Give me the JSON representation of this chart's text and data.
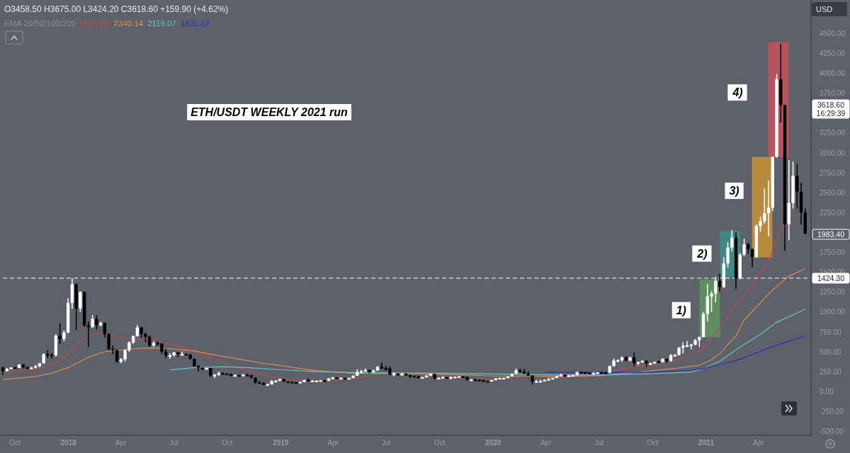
{
  "chart_data": {
    "type": "candlestick",
    "title": "ETH/USDT WEEKLY 2021 run",
    "x": [
      "2017-09-11",
      "2017-09-18",
      "2017-09-25",
      "2017-10-02",
      "2017-10-09",
      "2017-10-16",
      "2017-10-23",
      "2017-10-30",
      "2017-11-06",
      "2017-11-13",
      "2017-11-20",
      "2017-11-27",
      "2017-12-04",
      "2017-12-11",
      "2017-12-18",
      "2017-12-25",
      "2018-01-01",
      "2018-01-08",
      "2018-01-15",
      "2018-01-22",
      "2018-01-29",
      "2018-02-05",
      "2018-02-12",
      "2018-02-19",
      "2018-02-26",
      "2018-03-05",
      "2018-03-12",
      "2018-03-19",
      "2018-03-26",
      "2018-04-02",
      "2018-04-09",
      "2018-04-16",
      "2018-04-23",
      "2018-04-30",
      "2018-05-07",
      "2018-05-14",
      "2018-05-21",
      "2018-05-28",
      "2018-06-04",
      "2018-06-11",
      "2018-06-18",
      "2018-06-25",
      "2018-07-02",
      "2018-07-09",
      "2018-07-16",
      "2018-07-23",
      "2018-07-30",
      "2018-08-06",
      "2018-08-13",
      "2018-08-20",
      "2018-08-27",
      "2018-09-03",
      "2018-09-10",
      "2018-09-17",
      "2018-09-24",
      "2018-10-01",
      "2018-10-08",
      "2018-10-15",
      "2018-10-22",
      "2018-10-29",
      "2018-11-05",
      "2018-11-12",
      "2018-11-19",
      "2018-11-26",
      "2018-12-03",
      "2018-12-10",
      "2018-12-17",
      "2018-12-24",
      "2018-12-31",
      "2019-01-07",
      "2019-01-14",
      "2019-01-21",
      "2019-01-28",
      "2019-02-04",
      "2019-02-11",
      "2019-02-18",
      "2019-02-25",
      "2019-03-04",
      "2019-03-11",
      "2019-03-18",
      "2019-03-25",
      "2019-04-01",
      "2019-04-08",
      "2019-04-15",
      "2019-04-22",
      "2019-04-29",
      "2019-05-06",
      "2019-05-13",
      "2019-05-20",
      "2019-05-27",
      "2019-06-03",
      "2019-06-10",
      "2019-06-17",
      "2019-06-24",
      "2019-07-01",
      "2019-07-08",
      "2019-07-15",
      "2019-07-22",
      "2019-07-29",
      "2019-08-05",
      "2019-08-12",
      "2019-08-19",
      "2019-08-26",
      "2019-09-02",
      "2019-09-09",
      "2019-09-16",
      "2019-09-23",
      "2019-09-30",
      "2019-10-07",
      "2019-10-14",
      "2019-10-21",
      "2019-10-28",
      "2019-11-04",
      "2019-11-11",
      "2019-11-18",
      "2019-11-25",
      "2019-12-02",
      "2019-12-09",
      "2019-12-16",
      "2019-12-23",
      "2019-12-30",
      "2020-01-06",
      "2020-01-13",
      "2020-01-20",
      "2020-01-27",
      "2020-02-03",
      "2020-02-10",
      "2020-02-17",
      "2020-02-24",
      "2020-03-02",
      "2020-03-09",
      "2020-03-16",
      "2020-03-23",
      "2020-03-30",
      "2020-04-06",
      "2020-04-13",
      "2020-04-20",
      "2020-04-27",
      "2020-05-04",
      "2020-05-11",
      "2020-05-18",
      "2020-05-25",
      "2020-06-01",
      "2020-06-08",
      "2020-06-15",
      "2020-06-22",
      "2020-06-29",
      "2020-07-06",
      "2020-07-13",
      "2020-07-20",
      "2020-07-27",
      "2020-08-03",
      "2020-08-10",
      "2020-08-17",
      "2020-08-24",
      "2020-08-31",
      "2020-09-07",
      "2020-09-14",
      "2020-09-21",
      "2020-09-28",
      "2020-10-05",
      "2020-10-12",
      "2020-10-19",
      "2020-10-26",
      "2020-11-02",
      "2020-11-09",
      "2020-11-16",
      "2020-11-23",
      "2020-11-30",
      "2020-12-07",
      "2020-12-14",
      "2020-12-21",
      "2020-12-28",
      "2021-01-04",
      "2021-01-11",
      "2021-01-18",
      "2021-01-25",
      "2021-02-01",
      "2021-02-08",
      "2021-02-15",
      "2021-02-22",
      "2021-03-01",
      "2021-03-08",
      "2021-03-15",
      "2021-03-22",
      "2021-03-29",
      "2021-04-05",
      "2021-04-12",
      "2021-04-19",
      "2021-04-26",
      "2021-05-03",
      "2021-05-10",
      "2021-05-17",
      "2021-05-24",
      "2021-05-31",
      "2021-06-07",
      "2021-06-14",
      "2021-06-21"
    ],
    "ohlc": [
      [
        300,
        312,
        210,
        258
      ],
      [
        258,
        295,
        250,
        283
      ],
      [
        283,
        305,
        278,
        302
      ],
      [
        302,
        312,
        290,
        297
      ],
      [
        297,
        345,
        295,
        338
      ],
      [
        338,
        345,
        290,
        305
      ],
      [
        305,
        310,
        280,
        297
      ],
      [
        297,
        310,
        285,
        300
      ],
      [
        300,
        335,
        290,
        318
      ],
      [
        318,
        360,
        305,
        355
      ],
      [
        355,
        480,
        350,
        470
      ],
      [
        470,
        520,
        420,
        465
      ],
      [
        465,
        480,
        410,
        455
      ],
      [
        455,
        720,
        440,
        700
      ],
      [
        700,
        860,
        600,
        660
      ],
      [
        660,
        770,
        630,
        742
      ],
      [
        742,
        1170,
        730,
        1115
      ],
      [
        1115,
        1424.3,
        1040,
        1348
      ],
      [
        1348,
        1360,
        770,
        1045
      ],
      [
        1045,
        1260,
        1000,
        1250
      ],
      [
        1250,
        1255,
        810,
        833
      ],
      [
        833,
        880,
        560,
        810
      ],
      [
        810,
        960,
        800,
        913
      ],
      [
        913,
        960,
        780,
        833
      ],
      [
        833,
        880,
        820,
        860
      ],
      [
        860,
        870,
        680,
        724
      ],
      [
        724,
        730,
        520,
        537
      ],
      [
        537,
        580,
        470,
        520
      ],
      [
        520,
        530,
        365,
        375
      ],
      [
        375,
        420,
        355,
        405
      ],
      [
        405,
        530,
        380,
        520
      ],
      [
        520,
        630,
        500,
        618
      ],
      [
        618,
        700,
        600,
        698
      ],
      [
        698,
        835,
        690,
        805
      ],
      [
        805,
        810,
        670,
        724
      ],
      [
        724,
        740,
        620,
        690
      ],
      [
        690,
        700,
        560,
        580
      ],
      [
        580,
        630,
        560,
        610
      ],
      [
        610,
        630,
        580,
        600
      ],
      [
        600,
        610,
        470,
        500
      ],
      [
        500,
        540,
        420,
        455
      ],
      [
        455,
        480,
        410,
        455
      ],
      [
        455,
        500,
        440,
        490
      ],
      [
        490,
        500,
        430,
        470
      ],
      [
        470,
        505,
        455,
        470
      ],
      [
        470,
        480,
        455,
        465
      ],
      [
        465,
        470,
        400,
        410
      ],
      [
        410,
        415,
        310,
        320
      ],
      [
        320,
        330,
        250,
        300
      ],
      [
        300,
        305,
        265,
        280
      ],
      [
        280,
        300,
        270,
        295
      ],
      [
        295,
        300,
        185,
        200
      ],
      [
        200,
        220,
        170,
        210
      ],
      [
        210,
        250,
        200,
        230
      ],
      [
        230,
        240,
        215,
        225
      ],
      [
        225,
        230,
        210,
        215
      ],
      [
        215,
        230,
        190,
        200
      ],
      [
        200,
        215,
        195,
        205
      ],
      [
        205,
        210,
        195,
        200
      ],
      [
        200,
        225,
        195,
        210
      ],
      [
        210,
        225,
        200,
        205
      ],
      [
        205,
        210,
        165,
        175
      ],
      [
        175,
        180,
        100,
        115
      ],
      [
        115,
        130,
        100,
        110
      ],
      [
        110,
        115,
        82,
        85
      ],
      [
        85,
        100,
        78,
        90
      ],
      [
        90,
        145,
        88,
        130
      ],
      [
        130,
        145,
        115,
        135
      ],
      [
        135,
        160,
        130,
        155
      ],
      [
        155,
        160,
        120,
        125
      ],
      [
        125,
        130,
        110,
        120
      ],
      [
        120,
        125,
        110,
        115
      ],
      [
        115,
        118,
        100,
        110
      ],
      [
        110,
        125,
        105,
        120
      ],
      [
        120,
        150,
        118,
        145
      ],
      [
        145,
        165,
        130,
        135
      ],
      [
        135,
        145,
        125,
        135
      ],
      [
        135,
        140,
        125,
        135
      ],
      [
        135,
        145,
        130,
        140
      ],
      [
        140,
        145,
        130,
        135
      ],
      [
        135,
        170,
        130,
        165
      ],
      [
        165,
        185,
        160,
        175
      ],
      [
        175,
        180,
        160,
        165
      ],
      [
        165,
        180,
        160,
        170
      ],
      [
        170,
        175,
        145,
        155
      ],
      [
        155,
        175,
        150,
        170
      ],
      [
        170,
        200,
        165,
        200
      ],
      [
        200,
        280,
        195,
        245
      ],
      [
        245,
        270,
        225,
        255
      ],
      [
        255,
        290,
        250,
        270
      ],
      [
        270,
        275,
        225,
        245
      ],
      [
        245,
        275,
        240,
        265
      ],
      [
        265,
        320,
        260,
        310
      ],
      [
        310,
        365,
        280,
        295
      ],
      [
        295,
        320,
        260,
        290
      ],
      [
        290,
        315,
        205,
        215
      ],
      [
        215,
        240,
        190,
        225
      ],
      [
        225,
        230,
        200,
        215
      ],
      [
        215,
        235,
        205,
        220
      ],
      [
        220,
        235,
        200,
        205
      ],
      [
        205,
        210,
        170,
        195
      ],
      [
        195,
        200,
        180,
        190
      ],
      [
        190,
        195,
        165,
        170
      ],
      [
        170,
        185,
        165,
        180
      ],
      [
        180,
        205,
        175,
        200
      ],
      [
        200,
        225,
        195,
        220
      ],
      [
        220,
        225,
        150,
        165
      ],
      [
        165,
        180,
        160,
        170
      ],
      [
        170,
        195,
        165,
        180
      ],
      [
        180,
        185,
        160,
        170
      ],
      [
        170,
        195,
        155,
        180
      ],
      [
        180,
        190,
        175,
        185
      ],
      [
        185,
        195,
        180,
        190
      ],
      [
        190,
        195,
        180,
        185
      ],
      [
        185,
        190,
        140,
        150
      ],
      [
        150,
        158,
        140,
        150
      ],
      [
        150,
        160,
        136,
        145
      ],
      [
        145,
        155,
        132,
        142
      ],
      [
        142,
        150,
        118,
        130
      ],
      [
        130,
        135,
        125,
        128
      ],
      [
        128,
        145,
        125,
        143
      ],
      [
        143,
        170,
        140,
        165
      ],
      [
        165,
        175,
        160,
        170
      ],
      [
        170,
        175,
        155,
        170
      ],
      [
        170,
        190,
        165,
        190
      ],
      [
        190,
        225,
        185,
        225
      ],
      [
        225,
        290,
        220,
        265
      ],
      [
        265,
        285,
        240,
        250
      ],
      [
        250,
        280,
        220,
        225
      ],
      [
        225,
        255,
        195,
        200
      ],
      [
        200,
        205,
        90,
        125
      ],
      [
        125,
        145,
        110,
        130
      ],
      [
        130,
        145,
        125,
        130
      ],
      [
        130,
        150,
        125,
        145
      ],
      [
        145,
        175,
        140,
        155
      ],
      [
        155,
        175,
        150,
        170
      ],
      [
        170,
        200,
        165,
        195
      ],
      [
        195,
        225,
        190,
        210
      ],
      [
        210,
        215,
        180,
        190
      ],
      [
        190,
        210,
        185,
        200
      ],
      [
        200,
        210,
        195,
        205
      ],
      [
        205,
        250,
        200,
        245
      ],
      [
        245,
        250,
        230,
        240
      ],
      [
        240,
        250,
        225,
        235
      ],
      [
        235,
        240,
        225,
        230
      ],
      [
        230,
        245,
        220,
        230
      ],
      [
        230,
        245,
        225,
        240
      ],
      [
        240,
        252,
        226,
        236
      ],
      [
        236,
        248,
        224,
        235
      ],
      [
        235,
        325,
        230,
        320
      ],
      [
        320,
        415,
        315,
        390
      ],
      [
        390,
        405,
        365,
        395
      ],
      [
        395,
        440,
        375,
        430
      ],
      [
        430,
        445,
        380,
        390
      ],
      [
        390,
        435,
        380,
        430
      ],
      [
        430,
        490,
        310,
        355
      ],
      [
        355,
        375,
        330,
        370
      ],
      [
        370,
        395,
        360,
        385
      ],
      [
        385,
        390,
        310,
        355
      ],
      [
        355,
        365,
        330,
        355
      ],
      [
        355,
        375,
        345,
        375
      ],
      [
        375,
        390,
        365,
        370
      ],
      [
        370,
        420,
        365,
        410
      ],
      [
        410,
        415,
        355,
        385
      ],
      [
        385,
        470,
        375,
        455
      ],
      [
        455,
        470,
        440,
        460
      ],
      [
        460,
        560,
        455,
        550
      ],
      [
        550,
        620,
        480,
        575
      ],
      [
        575,
        635,
        560,
        580
      ],
      [
        580,
        600,
        530,
        590
      ],
      [
        590,
        660,
        580,
        645
      ],
      [
        645,
        690,
        560,
        685
      ],
      [
        685,
        1000,
        680,
        975
      ],
      [
        975,
        1350,
        880,
        1195
      ],
      [
        1195,
        1260,
        1000,
        1230
      ],
      [
        1230,
        1440,
        1120,
        1390
      ],
      [
        1390,
        1480,
        1250,
        1315
      ],
      [
        1315,
        1690,
        1300,
        1610
      ],
      [
        1610,
        1880,
        1560,
        1810
      ],
      [
        1810,
        2030,
        1760,
        1935
      ],
      [
        1935,
        2000,
        1290,
        1420
      ],
      [
        1420,
        1740,
        1410,
        1720
      ],
      [
        1720,
        1920,
        1700,
        1850
      ],
      [
        1850,
        1870,
        1730,
        1790
      ],
      [
        1790,
        1800,
        1560,
        1690
      ],
      [
        1690,
        2100,
        1680,
        2080
      ],
      [
        2080,
        2200,
        2010,
        2140
      ],
      [
        2140,
        2550,
        2110,
        2240
      ],
      [
        2240,
        2650,
        1950,
        2310
      ],
      [
        2310,
        2950,
        2270,
        2950
      ],
      [
        2950,
        3990,
        2940,
        3925
      ],
      [
        3925,
        4372,
        3380,
        3600
      ],
      [
        3600,
        3600,
        1770,
        2104
      ],
      [
        2104,
        2910,
        1900,
        2370
      ],
      [
        2370,
        2890,
        2300,
        2710
      ],
      [
        2710,
        2860,
        2300,
        2510
      ],
      [
        2510,
        2620,
        2100,
        2250
      ],
      [
        2250,
        2300,
        1980,
        1983.4
      ]
    ],
    "series": [
      {
        "type": "bar",
        "x": [
          "2021-01-08",
          "2021-02-12",
          "2021-04-08",
          "2021-05-06"
        ],
        "base": [
          683,
          1427,
          1684,
          2948
        ],
        "values": [
          725,
          589,
          1264,
          1443
        ],
        "colors": [
          "#5f8d5f",
          "#3f8883",
          "#b98b3f",
          "#b5545e"
        ]
      },
      {
        "type": "line",
        "color": "#c0484f",
        "x": [
          "2017-09-11",
          "2017-10-09",
          "2017-11-06",
          "2017-12-04",
          "2018-01-01",
          "2018-01-29",
          "2018-02-26",
          "2018-03-26",
          "2018-04-23",
          "2018-05-21",
          "2018-06-18",
          "2018-07-16",
          "2018-08-13",
          "2018-09-10",
          "2018-10-08",
          "2018-11-05",
          "2018-12-03",
          "2018-12-31",
          "2019-02-04",
          "2019-03-04",
          "2019-04-01",
          "2019-05-06",
          "2019-06-03",
          "2019-07-01",
          "2019-08-05",
          "2019-09-02",
          "2019-10-07",
          "2019-11-04",
          "2019-12-02",
          "2020-01-06",
          "2020-02-03",
          "2020-03-02",
          "2020-04-06",
          "2020-05-04",
          "2020-06-01",
          "2020-07-06",
          "2020-08-03",
          "2020-09-07",
          "2020-10-05",
          "2020-11-02",
          "2020-12-07",
          "2020-12-28",
          "2021-01-25",
          "2021-02-22",
          "2021-03-22",
          "2021-04-19",
          "2021-05-10",
          "2021-05-31",
          "2021-06-21"
        ],
        "values": [
          240,
          262,
          283,
          335,
          470,
          690,
          745,
          690,
          650,
          665,
          610,
          560,
          480,
          400,
          330,
          265,
          205,
          168,
          140,
          137,
          145,
          163,
          200,
          238,
          232,
          212,
          195,
          186,
          175,
          158,
          172,
          205,
          178,
          183,
          205,
          225,
          275,
          318,
          345,
          372,
          455,
          540,
          800,
          1100,
          1340,
          1640,
          2050,
          2220,
          2230
        ]
      },
      {
        "type": "line",
        "color": "#d98d52",
        "x": [
          "2017-09-11",
          "2017-11-06",
          "2017-12-04",
          "2018-01-01",
          "2018-02-05",
          "2018-03-05",
          "2018-04-02",
          "2018-05-07",
          "2018-06-04",
          "2018-07-02",
          "2018-08-06",
          "2018-09-03",
          "2018-10-08",
          "2018-11-05",
          "2018-12-03",
          "2018-12-31",
          "2019-02-04",
          "2019-03-04",
          "2019-05-06",
          "2019-07-01",
          "2019-09-02",
          "2019-11-04",
          "2020-01-06",
          "2020-03-02",
          "2020-05-04",
          "2020-07-06",
          "2020-09-07",
          "2020-11-02",
          "2020-12-21",
          "2021-01-11",
          "2021-01-25",
          "2021-02-22",
          "2021-03-08",
          "2021-04-26",
          "2021-05-24",
          "2021-06-21"
        ],
        "values": [
          150,
          190,
          230,
          300,
          430,
          500,
          522,
          545,
          548,
          535,
          510,
          470,
          425,
          390,
          355,
          328,
          290,
          262,
          230,
          228,
          225,
          210,
          195,
          195,
          190,
          200,
          245,
          285,
          330,
          400,
          476,
          700,
          900,
          1276,
          1450,
          1542
        ]
      },
      {
        "type": "line",
        "color": "#62c6c8",
        "x": [
          "2018-06-25",
          "2018-08-06",
          "2018-09-24",
          "2018-11-05",
          "2018-12-31",
          "2019-03-04",
          "2019-05-06",
          "2019-07-01",
          "2019-10-07",
          "2020-01-06",
          "2020-04-06",
          "2020-07-06",
          "2020-10-05",
          "2020-12-07",
          "2020-12-28",
          "2021-01-25",
          "2021-03-01",
          "2021-04-05",
          "2021-05-03",
          "2021-06-21"
        ],
        "values": [
          271,
          300,
          312,
          300,
          275,
          250,
          238,
          235,
          230,
          220,
          210,
          208,
          225,
          245,
          290,
          380,
          560,
          720,
          870,
          1036
        ]
      },
      {
        "type": "line",
        "color": "#2d2dd2",
        "x": [
          "2020-03-30",
          "2020-07-06",
          "2020-10-05",
          "2020-12-07",
          "2021-01-04",
          "2021-02-22",
          "2021-04-26",
          "2021-06-21"
        ],
        "values": [
          245,
          240,
          245,
          265,
          300,
          387,
          565,
          700
        ]
      }
    ],
    "xlim": [
      "2017-09-06",
      "2021-07-01"
    ],
    "xticks": [
      {
        "value": "2017-10-01",
        "label": "Oct"
      },
      {
        "value": "2018-01-01",
        "label": "2018"
      },
      {
        "value": "2018-04-01",
        "label": "Apr"
      },
      {
        "value": "2018-07-01",
        "label": "Jul"
      },
      {
        "value": "2018-10-01",
        "label": "Oct"
      },
      {
        "value": "2019-01-01",
        "label": "2019"
      },
      {
        "value": "2019-04-01",
        "label": "Apr"
      },
      {
        "value": "2019-07-01",
        "label": "Jul"
      },
      {
        "value": "2019-10-01",
        "label": "Oct"
      },
      {
        "value": "2020-01-01",
        "label": "2020"
      },
      {
        "value": "2020-04-01",
        "label": "Apr"
      },
      {
        "value": "2020-07-01",
        "label": "Jul"
      },
      {
        "value": "2020-10-01",
        "label": "Oct"
      },
      {
        "value": "2021-01-01",
        "label": "2021"
      },
      {
        "value": "2021-04-01",
        "label": "Apr"
      }
    ],
    "ylim": [
      -550,
      4920
    ],
    "yticks": [
      {
        "value": -500,
        "label": "-500.00"
      },
      {
        "value": -250,
        "label": "-250.00"
      },
      {
        "value": 0,
        "label": "0.00"
      },
      {
        "value": 250,
        "label": "250.00"
      },
      {
        "value": 500,
        "label": "500.00"
      },
      {
        "value": 750,
        "label": "750.00"
      },
      {
        "value": 1000,
        "label": "1000.00"
      },
      {
        "value": 1250,
        "label": "1250.00"
      },
      {
        "value": 1500,
        "label": "1500.00"
      },
      {
        "value": 1750,
        "label": "1750.00"
      },
      {
        "value": 2250,
        "label": "2250.00"
      },
      {
        "value": 2500,
        "label": "2500.00"
      },
      {
        "value": 2750,
        "label": "2750.00"
      },
      {
        "value": 3000,
        "label": "3000.00"
      },
      {
        "value": 3250,
        "label": "3250.00"
      },
      {
        "value": 3750,
        "label": "3750.00"
      },
      {
        "value": 4000,
        "label": "4000.00"
      },
      {
        "value": 4250,
        "label": "4250.00"
      },
      {
        "value": 4500,
        "label": "4500.00"
      }
    ],
    "ref_lines": [
      {
        "axis": "y",
        "value": 1424.3,
        "label": "1424.30",
        "color": "#ffffff",
        "line_style": "dashed"
      }
    ],
    "annotations": [
      "O3458.50 H3675.00 L3424.20 C3618.60 +159.90 (+4.62%)",
      "EMA 20/50/100/200",
      "2826.55",
      "2340.14",
      "2119.07",
      "1831.67",
      "USD",
      "3618.60",
      "16:29:39",
      "1983.40",
      {
        "text": "1)",
        "x": "2020-11-20",
        "y": 1027
      },
      {
        "text": "2)",
        "x": "2020-12-26",
        "y": 1738
      },
      {
        "text": "3)",
        "x": "2021-02-19",
        "y": 2527
      },
      {
        "text": "4)",
        "x": "2021-02-25",
        "y": 3762
      }
    ]
  }
}
